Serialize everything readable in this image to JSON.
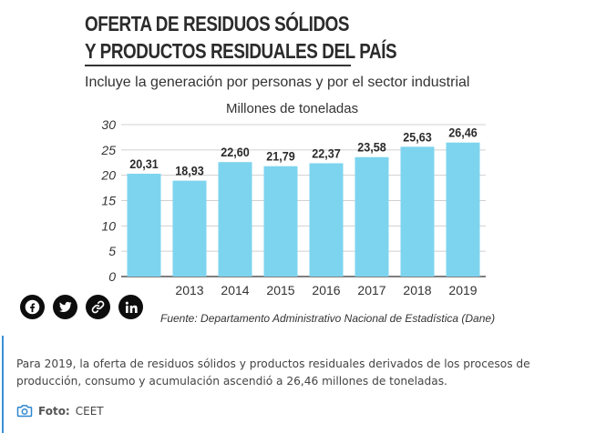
{
  "figure": {
    "title_line1": "OFERTA DE RESIDUOS SÓLIDOS",
    "title_line2": "Y PRODUCTOS RESIDUALES DEL PAÍS",
    "subtitle": "Incluye la generación por personas y por el sector industrial",
    "source": "Fuente: Departamento Administrativo Nacional de Estadística (Dane)"
  },
  "chart_data": {
    "type": "bar",
    "title": "OFERTA DE RESIDUOS SÓLIDOS Y PRODUCTOS RESIDUALES DEL PAÍS",
    "subtitle": "Millones de toneladas",
    "categories": [
      "",
      "2013",
      "2014",
      "2015",
      "2016",
      "2017",
      "2018",
      "2019"
    ],
    "values": [
      20.31,
      18.93,
      22.6,
      21.79,
      22.37,
      23.58,
      25.63,
      26.46
    ],
    "value_labels": [
      "20,31",
      "18,93",
      "22,60",
      "21,79",
      "22,37",
      "23,58",
      "25,63",
      "26,46"
    ],
    "yticks": [
      "0",
      "5",
      "10",
      "15",
      "20",
      "25",
      "30"
    ],
    "ylim": [
      0,
      30
    ],
    "grid": true,
    "bar_color": "#7dd4ef",
    "grid_color": "#d0d0d0"
  },
  "share": {
    "icons": [
      "facebook-icon",
      "twitter-icon",
      "link-icon",
      "linkedin-icon"
    ]
  },
  "caption": {
    "text": "Para 2019, la oferta de residuos sólidos y productos residuales derivados de los procesos de producción, consumo y acumulación ascendió a 26,46 millones de toneladas.",
    "credit_label": "Foto:",
    "credit_value": "CEET",
    "accent_color": "#3a8fd8"
  }
}
